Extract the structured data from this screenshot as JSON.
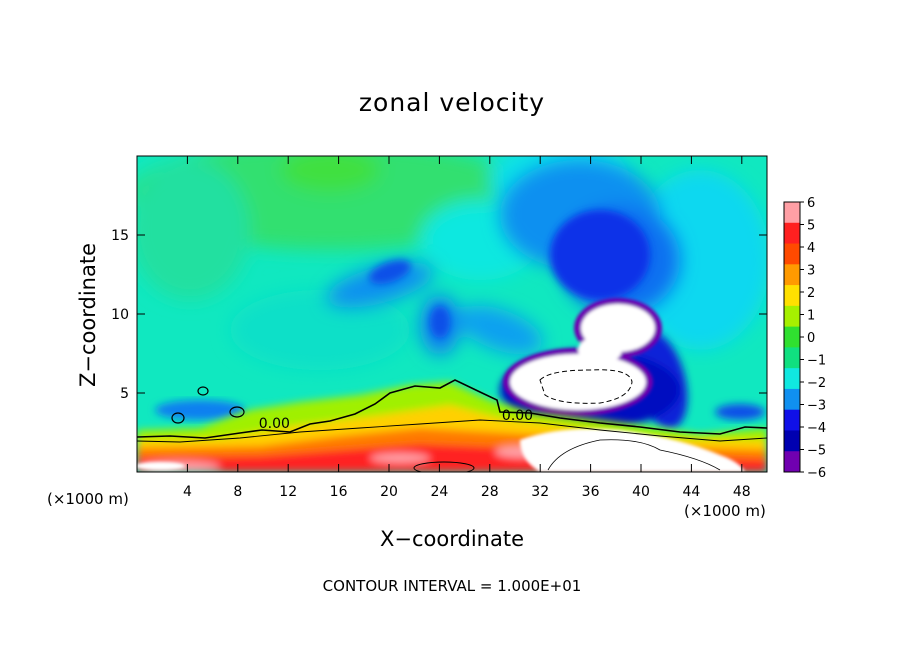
{
  "chart_data": {
    "type": "heatmap",
    "title": "zonal velocity",
    "xlabel": "X−coordinate",
    "ylabel": "Z−coordinate",
    "x_unit_label": "(×1000 m)",
    "xlim": [
      0,
      50
    ],
    "ylim": [
      0,
      20
    ],
    "x_ticks": [
      4,
      8,
      12,
      16,
      20,
      24,
      28,
      32,
      36,
      40,
      44,
      48
    ],
    "x_tick_labels": [
      "4",
      "8",
      "12",
      "16",
      "20",
      "24",
      "28",
      "32",
      "36",
      "40",
      "44",
      "48"
    ],
    "y_ticks": [
      5,
      10,
      15
    ],
    "y_tick_labels": [
      "5",
      "10",
      "15"
    ],
    "footer": "CONTOUR INTERVAL = 1.000E+01",
    "contour_labels": [
      {
        "text": "0.00",
        "x": 10.9,
        "z": 3.1
      },
      {
        "text": "0.00",
        "x": 30.2,
        "z": 3.6
      }
    ],
    "colorbar": {
      "min": -6,
      "max": 6,
      "labels": [
        "6",
        "5",
        "4",
        "3",
        "2",
        "1",
        "0",
        "−1",
        "−2",
        "−3",
        "−4",
        "−5",
        "−6"
      ],
      "levels": [
        {
          "value": 6,
          "color": "#ff9fa5"
        },
        {
          "value": 5,
          "color": "#ff2020"
        },
        {
          "value": 4,
          "color": "#ff4a00"
        },
        {
          "value": 3,
          "color": "#ff9a00"
        },
        {
          "value": 2,
          "color": "#ffe000"
        },
        {
          "value": 1,
          "color": "#a6f000"
        },
        {
          "value": 0,
          "color": "#30e030"
        },
        {
          "value": -1,
          "color": "#10e080"
        },
        {
          "value": -2,
          "color": "#10e8e0"
        },
        {
          "value": -3,
          "color": "#1090f0"
        },
        {
          "value": -4,
          "color": "#1010e8"
        },
        {
          "value": -5,
          "color": "#0000b0"
        },
        {
          "value": -6,
          "color": "#7000b0"
        }
      ]
    }
  }
}
